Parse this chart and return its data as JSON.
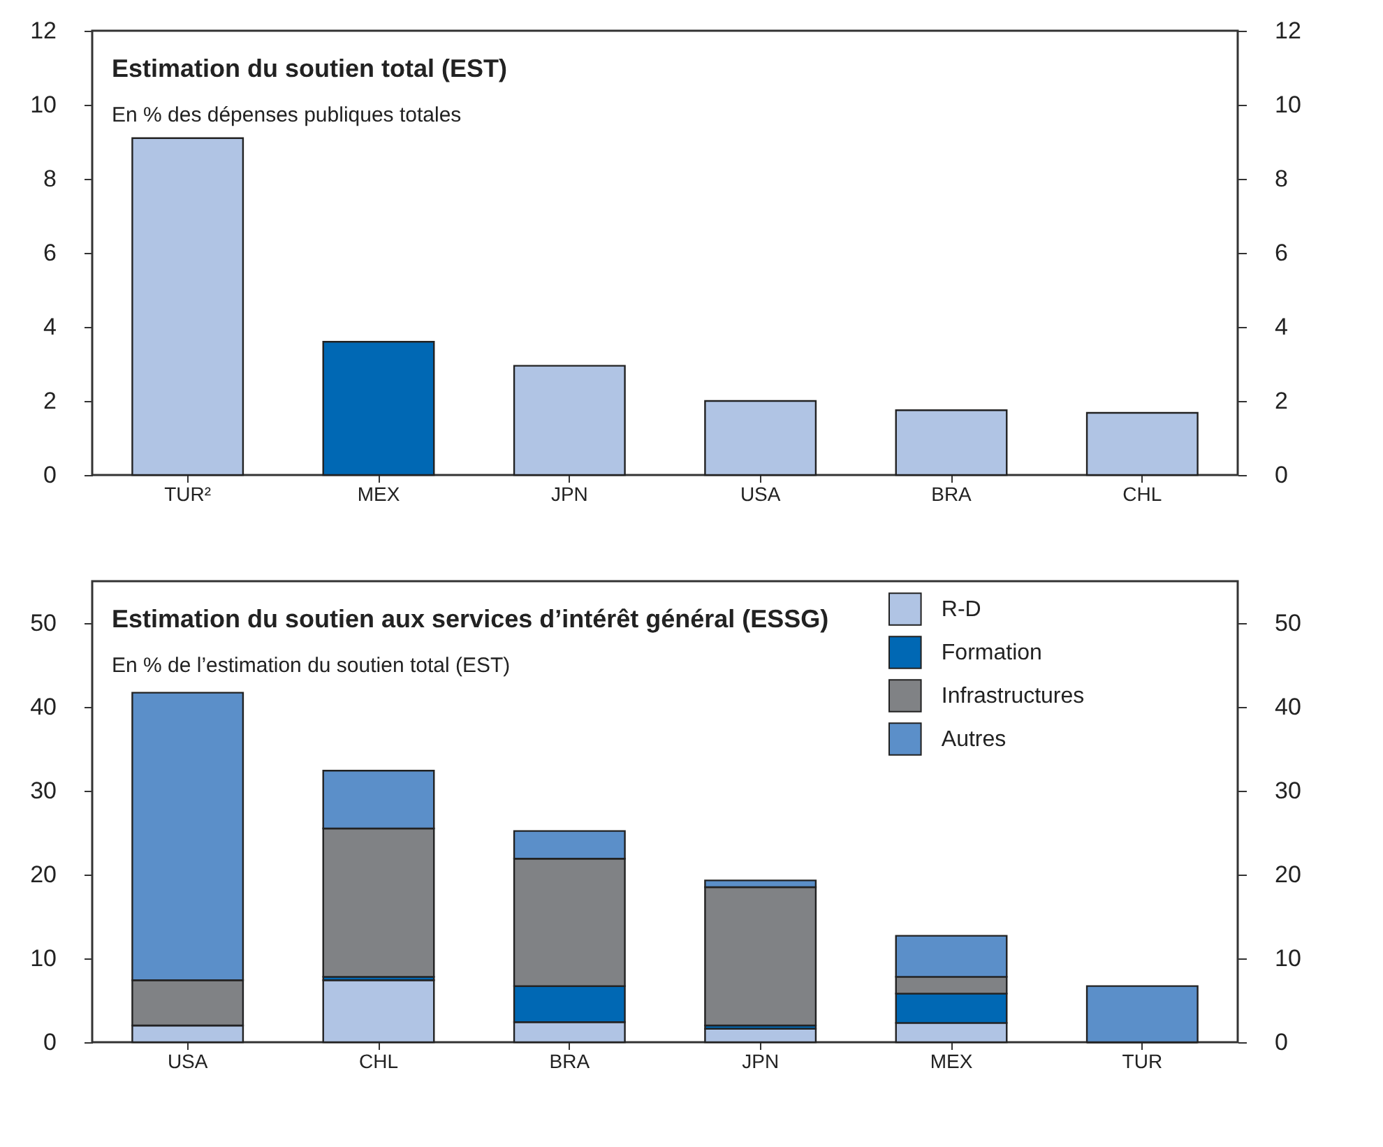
{
  "chart_data": [
    {
      "type": "bar",
      "title": "Estimation du soutien total (EST)",
      "subtitle": "En % des dépenses publiques totales",
      "categories": [
        "TUR²",
        "MEX",
        "JPN",
        "USA",
        "BRA",
        "CHL"
      ],
      "values": [
        9.1,
        3.6,
        2.95,
        2.0,
        1.75,
        1.68
      ],
      "colors": [
        "#b0c4e4",
        "#0068b4",
        "#b0c4e4",
        "#b0c4e4",
        "#b0c4e4",
        "#b0c4e4"
      ],
      "ylim": [
        0,
        12
      ],
      "yticks": [
        0,
        2,
        4,
        6,
        8,
        10,
        12
      ],
      "y2lim": [
        0,
        12
      ],
      "y2ticks": [
        0,
        2,
        4,
        6,
        8,
        10,
        12
      ],
      "grid": false
    },
    {
      "type": "bar",
      "stacked": true,
      "title": "Estimation du soutien aux services d’intérêt général (ESSG)",
      "subtitle": "En % de l’estimation du soutien total (EST)",
      "categories": [
        "USA",
        "CHL",
        "BRA",
        "JPN",
        "MEX",
        "TUR"
      ],
      "series": [
        {
          "name": "R-D",
          "color": "#b0c4e4",
          "values": [
            2.0,
            7.4,
            2.4,
            1.6,
            2.3,
            null
          ]
        },
        {
          "name": "Formation",
          "color": "#0068b4",
          "values": [
            0,
            0.4,
            4.3,
            0.4,
            3.5,
            0
          ]
        },
        {
          "name": "Infrastructures",
          "color": "#808285",
          "values": [
            5.4,
            17.7,
            15.2,
            16.5,
            2.0,
            0
          ]
        },
        {
          "name": "Autres",
          "color": "#5b8fc9",
          "values": [
            34.3,
            6.9,
            3.3,
            0.8,
            4.9,
            6.7
          ]
        }
      ],
      "ylim": [
        0,
        55
      ],
      "yticks": [
        0,
        10,
        20,
        30,
        40,
        50
      ],
      "y2lim": [
        0,
        55
      ],
      "y2ticks": [
        0,
        10,
        20,
        30,
        40,
        50
      ],
      "grid": false,
      "legend": "top right"
    }
  ]
}
